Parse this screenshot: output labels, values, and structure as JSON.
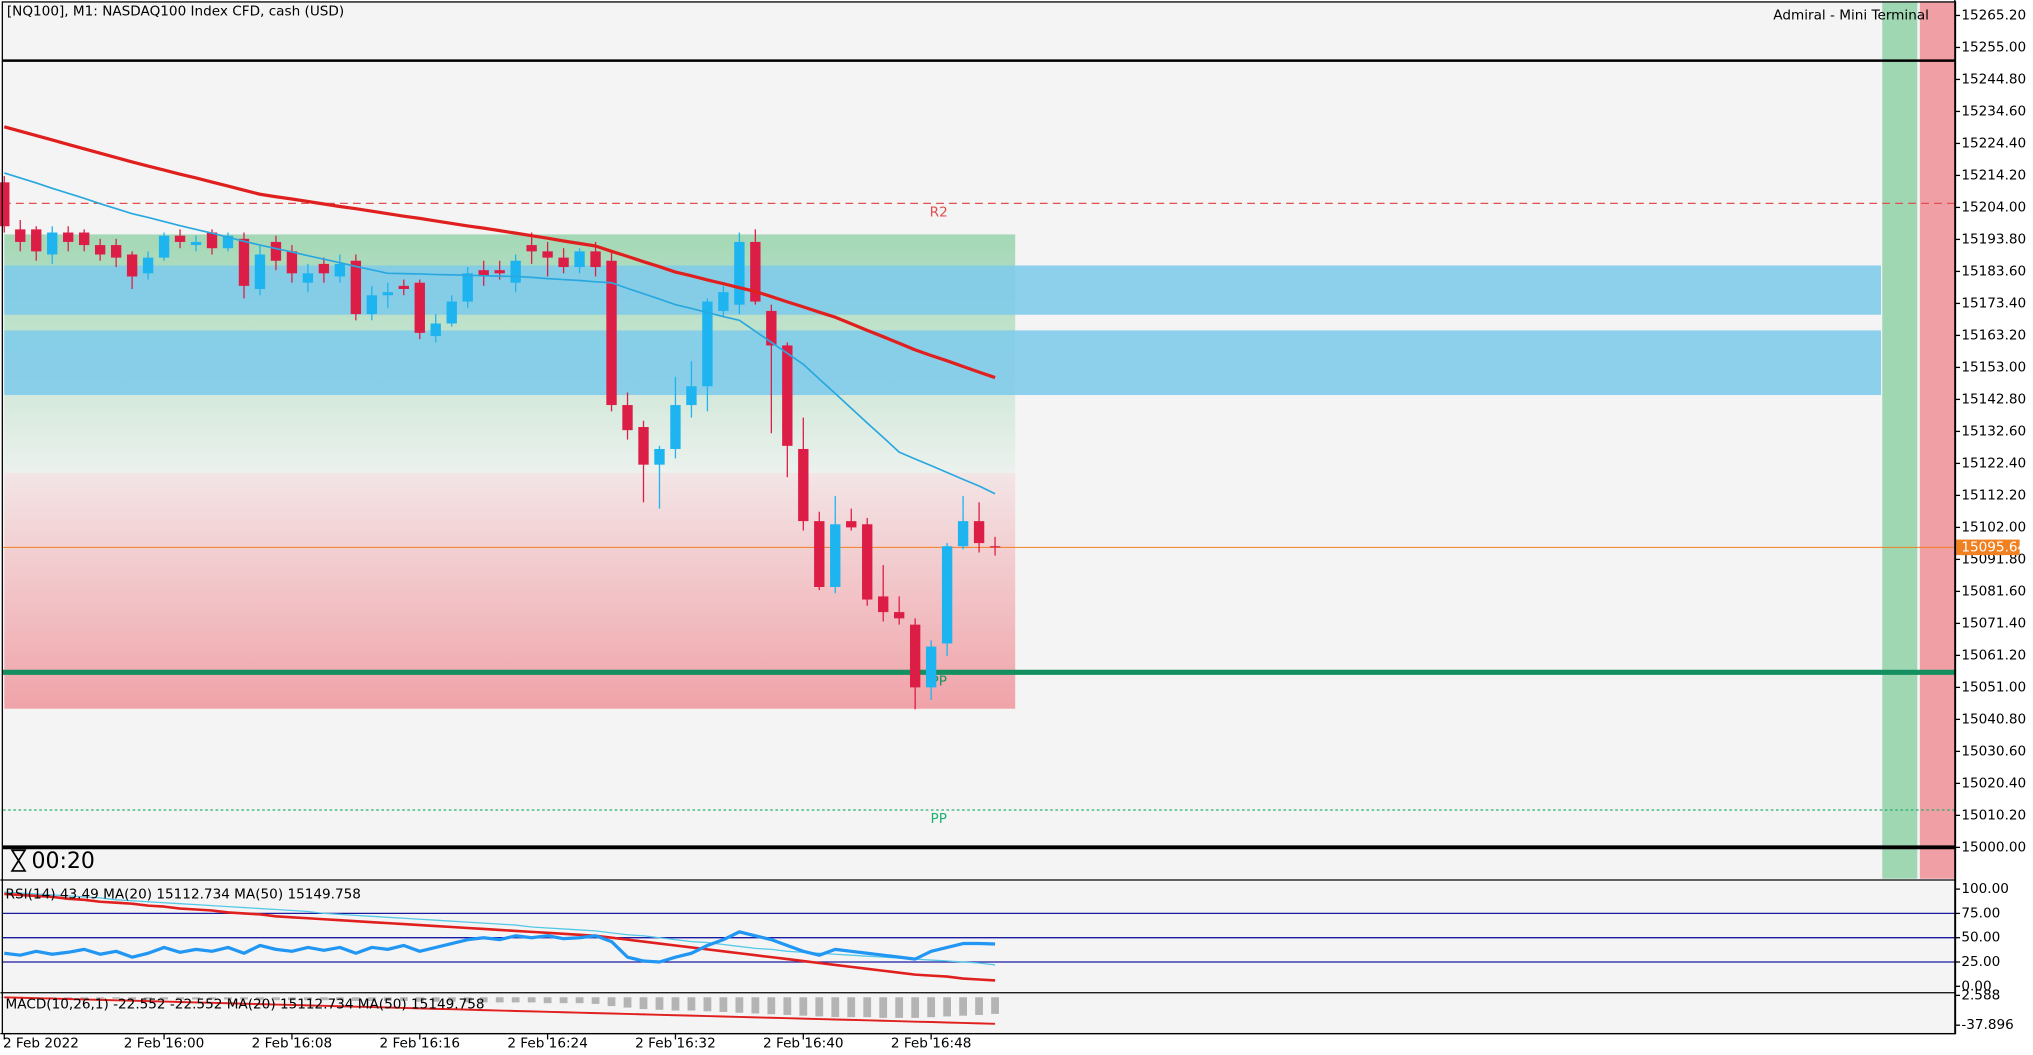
{
  "chart_data": [
    {
      "type": "candlestick",
      "title": "[NQ100], M1:  NASDAQ100 Index CFD, cash (USD)",
      "broker_label": "Admiral - Mini Terminal",
      "timer": "00:20",
      "categories": [
        "2 Feb 2022",
        null,
        null,
        null,
        null,
        null,
        null,
        null,
        null,
        null,
        "2 Feb 16:00",
        null,
        null,
        null,
        null,
        null,
        null,
        null,
        "2 Feb 16:08",
        null,
        null,
        null,
        null,
        null,
        null,
        null,
        "2 Feb 16:16",
        null,
        null,
        null,
        null,
        null,
        null,
        null,
        "2 Feb 16:24",
        null,
        null,
        null,
        null,
        null,
        null,
        null,
        "2 Feb 16:32",
        null,
        null,
        null,
        null,
        null,
        null,
        null,
        "2 Feb 16:40",
        null,
        null,
        null,
        null,
        null,
        null,
        null,
        "2 Feb 16:48",
        null,
        null,
        null,
        null
      ],
      "open": [
        15212,
        15197,
        15197,
        15189,
        15196,
        15196,
        15192,
        15192,
        15189,
        15183,
        15188,
        15195,
        15192,
        15196,
        15191,
        15194,
        15178,
        15193,
        15190,
        15180,
        15186,
        15182,
        15187,
        15170,
        15176,
        15179,
        15180,
        15163,
        15167,
        15174,
        15184,
        15184,
        15180,
        15192,
        15190,
        15188,
        15185,
        15190,
        15187,
        15141,
        15134,
        15122,
        15127,
        15141,
        15147,
        15171,
        15173,
        15193,
        15171,
        15160,
        15127,
        15104,
        15083,
        15104,
        15103,
        15080,
        15075,
        15071,
        15051,
        15065,
        15096,
        15104,
        15096
      ],
      "high": [
        15214,
        15200,
        15198,
        15198,
        15198,
        15197,
        15194,
        15194,
        15190,
        15190,
        15196,
        15197,
        15195,
        15197,
        15196,
        15196,
        15192,
        15195,
        15192,
        15186,
        15188,
        15189,
        15189,
        15179,
        15180,
        15181,
        15181,
        15170,
        15176,
        15185,
        15187,
        15187,
        15189,
        15196,
        15193,
        15191,
        15191,
        15193,
        15190,
        15145,
        15136,
        15128,
        15150,
        15155,
        15175,
        15179,
        15196,
        15197,
        15173,
        15161,
        15137,
        15107,
        15112,
        15108,
        15105,
        15090,
        15080,
        15073,
        15066,
        15097,
        15112,
        15110,
        15099
      ],
      "low": [
        15196,
        15190,
        15187,
        15186,
        15190,
        15190,
        15187,
        15185,
        15178,
        15181,
        15187,
        15191,
        15190,
        15189,
        15190,
        15175,
        15176,
        15184,
        15180,
        15177,
        15180,
        15180,
        15168,
        15168,
        15172,
        15176,
        15162,
        15161,
        15166,
        15172,
        15179,
        15181,
        15177,
        15186,
        15182,
        15183,
        15183,
        15182,
        15139,
        15130,
        15110,
        15108,
        15124,
        15137,
        15139,
        15169,
        15170,
        15173,
        15132,
        15118,
        15101,
        15082,
        15081,
        15101,
        15077,
        15072,
        15071,
        15044,
        15047,
        15061,
        15095,
        15094,
        15093
      ],
      "close": [
        15198,
        15193,
        15190,
        15196,
        15193,
        15192,
        15189,
        15188,
        15182,
        15188,
        15195,
        15193,
        15193,
        15191,
        15195,
        15179,
        15189,
        15187,
        15183,
        15183,
        15183,
        15186,
        15170,
        15176,
        15177,
        15178,
        15164,
        15167,
        15174,
        15183,
        15182,
        15183,
        15187,
        15190,
        15188,
        15185,
        15190,
        15185,
        15141,
        15133,
        15122,
        15127,
        15141,
        15147,
        15174,
        15177,
        15193,
        15174,
        15160,
        15128,
        15104,
        15083,
        15103,
        15102,
        15079,
        15075,
        15073,
        15051,
        15064,
        15096,
        15104,
        15097,
        15095.64
      ],
      "up_color": "#1eb4f0",
      "down_color": "#dc1e46",
      "lines": [
        {
          "color": "#29a8e0",
          "width": 1.3,
          "values": [
            15215,
            15213.4,
            15211.8,
            15210.1,
            15208.5,
            15206.9,
            15205.2,
            15203.6,
            15202,
            15200.8,
            15199.5,
            15198.2,
            15197,
            15195.8,
            15194.5,
            15193.2,
            15192,
            15190.9,
            15189.8,
            15188.6,
            15187.5,
            15186.4,
            15185.2,
            15184.1,
            15183,
            15182.9,
            15182.8,
            15182.6,
            15182.5,
            15182.4,
            15182.2,
            15182.1,
            15182,
            15181.7,
            15181.3,
            15181,
            15180.7,
            15180.3,
            15180,
            15178.2,
            15176.5,
            15174.8,
            15173,
            15171.8,
            15170.5,
            15169.2,
            15168,
            15164.5,
            15161,
            15157.5,
            15154,
            15149.3,
            15144.7,
            15140,
            15135.3,
            15130.7,
            15126,
            15123.8,
            15121.7,
            15119.5,
            15117.3,
            15115.2,
            15112.73
          ]
        },
        {
          "color": "#e0201e",
          "width": 2.5,
          "values": [
            15229.7,
            15228.3,
            15226.9,
            15225.5,
            15224.1,
            15222.7,
            15221.3,
            15219.9,
            15218.5,
            15217.2,
            15215.9,
            15214.6,
            15213.4,
            15212.1,
            15210.8,
            15209.5,
            15208.2,
            15207.4,
            15206.7,
            15205.9,
            15205.1,
            15204.3,
            15203.6,
            15202.8,
            15202,
            15201.2,
            15200.5,
            15199.7,
            15198.9,
            15198.1,
            15197.4,
            15196.6,
            15195.8,
            15195,
            15194.2,
            15193.3,
            15192.5,
            15191.7,
            15190,
            15188.4,
            15186.7,
            15185.1,
            15183.4,
            15182.2,
            15180.9,
            15179.7,
            15178.4,
            15177.2,
            15175.6,
            15173.9,
            15172.3,
            15170.6,
            15169,
            15166.9,
            15164.8,
            15162.8,
            15160.7,
            15158.6,
            15156.8,
            15155.1,
            15153.3,
            15151.5,
            15149.76
          ]
        }
      ],
      "zones": [
        {
          "from": 15195.4,
          "to": 15119.4,
          "color": "#8fd1a6",
          "fade": "down",
          "extended": false
        },
        {
          "from": 15119.4,
          "to": 15044.2,
          "color": "#ef8f96",
          "fade": "up",
          "extended": false
        },
        {
          "from": 15185.5,
          "to": 15169.8,
          "color": "#7ecbea",
          "fade": "none",
          "extended": true
        },
        {
          "from": 15164.8,
          "to": 15144.2,
          "color": "#7ecbea",
          "fade": "none",
          "extended": true
        }
      ],
      "levels": [
        {
          "value": 15250.8,
          "color": "#000000",
          "width": 2,
          "style": "solid"
        },
        {
          "value": 15205.3,
          "label": "R2",
          "color": "#e05050",
          "width": 1,
          "style": "dashed"
        },
        {
          "value": 15055.8,
          "label": "PP",
          "color": "#149060",
          "width": 4,
          "style": "solid"
        },
        {
          "value": 15011.9,
          "label": "PP",
          "color": "#20b070",
          "width": 1,
          "style": "dotted"
        },
        {
          "value": 15000,
          "color": "#000000",
          "width": 3,
          "style": "solid"
        }
      ],
      "current_price": 15095.64,
      "current_color": "#f08020",
      "ylim": [
        14990,
        15269.3
      ],
      "yticks": [
        {
          "value": 15265.2,
          "label": "15265.20"
        },
        {
          "value": 15255,
          "label": "15255.00"
        },
        {
          "value": 15244.8,
          "label": "15244.80"
        },
        {
          "value": 15234.6,
          "label": "15234.60"
        },
        {
          "value": 15224.4,
          "label": "15224.40"
        },
        {
          "value": 15214.2,
          "label": "15214.20"
        },
        {
          "value": 15204,
          "label": "15204.00"
        },
        {
          "value": 15193.8,
          "label": "15193.80"
        },
        {
          "value": 15183.6,
          "label": "15183.60"
        },
        {
          "value": 15173.4,
          "label": "15173.40"
        },
        {
          "value": 15163.2,
          "label": "15163.20"
        },
        {
          "value": 15153,
          "label": "15153.00"
        },
        {
          "value": 15142.8,
          "label": "15142.80"
        },
        {
          "value": 15132.6,
          "label": "15132.60"
        },
        {
          "value": 15122.4,
          "label": "15122.40"
        },
        {
          "value": 15112.2,
          "label": "15112.20"
        },
        {
          "value": 15102,
          "label": "15102.00"
        },
        {
          "value": 15091.8,
          "label": "15091.80"
        },
        {
          "value": 15081.6,
          "label": "15081.60"
        },
        {
          "value": 15071.4,
          "label": "15071.40"
        },
        {
          "value": 15061.2,
          "label": "15061.20"
        },
        {
          "value": 15051,
          "label": "15051.00"
        },
        {
          "value": 15040.8,
          "label": "15040.80"
        },
        {
          "value": 15030.6,
          "label": "15030.60"
        },
        {
          "value": 15020.4,
          "label": "15020.40"
        },
        {
          "value": 15010.2,
          "label": "15010.20"
        },
        {
          "value": 15000,
          "label": "15000.00"
        }
      ]
    },
    {
      "type": "line",
      "title": "RSI(14) 43.49 MA(20) 15112.734 MA(50) 15149.758",
      "ylim": [
        0,
        100
      ],
      "yticks": [
        {
          "value": 100,
          "label": "100.00"
        },
        {
          "value": 75,
          "label": "75.00"
        },
        {
          "value": 50,
          "label": "50.00"
        },
        {
          "value": 25,
          "label": "25.00"
        },
        {
          "value": 0,
          "label": "0.00"
        }
      ],
      "levels": [
        75,
        50,
        25
      ],
      "level_color": "#1a1aa0",
      "series": [
        {
          "color": "#56c8e8",
          "width": 1,
          "values": [
            97,
            96,
            95,
            94,
            93,
            92,
            91,
            89,
            88,
            87,
            86,
            85,
            84,
            83,
            82,
            81,
            80,
            79,
            78,
            77,
            75,
            74,
            73,
            72,
            71,
            70,
            69,
            68,
            67,
            66,
            65,
            64,
            63,
            61,
            60,
            59,
            58,
            57,
            55,
            53,
            52,
            50,
            48,
            46,
            45,
            43,
            41,
            39,
            38,
            36,
            35,
            34,
            33,
            32,
            31,
            30,
            29,
            28,
            27,
            26,
            25,
            24,
            22
          ]
        },
        {
          "color": "#e0201e",
          "width": 2,
          "values": [
            95,
            94,
            93,
            92,
            90,
            89,
            87,
            86,
            85,
            83,
            82,
            80,
            79,
            78,
            76,
            75,
            74,
            72,
            71,
            70,
            69,
            68,
            67,
            66,
            65,
            64,
            63,
            62,
            61,
            60,
            59,
            58,
            57,
            56,
            55,
            54,
            53,
            52,
            50,
            48,
            46,
            44,
            42,
            40,
            38,
            36,
            34,
            32,
            30,
            28,
            26,
            24,
            22,
            20,
            18,
            16,
            14,
            12,
            11,
            10,
            8,
            7,
            6
          ]
        },
        {
          "color": "#2196f3",
          "width": 2.5,
          "values": [
            34,
            32,
            36,
            33,
            35,
            38,
            33,
            36,
            30,
            34,
            40,
            35,
            38,
            36,
            40,
            34,
            42,
            38,
            36,
            40,
            37,
            40,
            34,
            40,
            38,
            42,
            36,
            40,
            44,
            48,
            50,
            48,
            52,
            50,
            52,
            49,
            50,
            52,
            46,
            30,
            26,
            25,
            30,
            34,
            42,
            48,
            56,
            52,
            48,
            42,
            36,
            32,
            38,
            36,
            34,
            32,
            30,
            28,
            36,
            40,
            44,
            44,
            43.49
          ]
        }
      ]
    },
    {
      "type": "bar",
      "title": "MACD(10,26,1) -22.552 -22.552 MA(20) 15112.734 MA(50) 15149.758",
      "ylim": [
        -37.896,
        2.588
      ],
      "yticks": [
        2.588,
        -37.896
      ],
      "series": [
        {
          "type": "bar",
          "color": "#b4b4b4",
          "values": [
            -1,
            -1,
            -1,
            -2,
            -2,
            -2,
            -2,
            -2,
            -3,
            -3,
            -3,
            -3,
            -3,
            -3,
            -3,
            -3,
            -4,
            -4,
            -4,
            -4,
            -4,
            -4,
            -5,
            -5,
            -5,
            -5,
            -6,
            -6,
            -6,
            -7,
            -7,
            -7,
            -7,
            -7,
            -8,
            -8,
            -8,
            -9,
            -12,
            -14,
            -16,
            -17,
            -18,
            -18,
            -19,
            -20,
            -21,
            -22,
            -23,
            -24,
            -25,
            -26,
            -27,
            -27,
            -27,
            -28,
            -28,
            -28,
            -27,
            -26,
            -25,
            -24,
            -22.552
          ]
        },
        {
          "type": "line",
          "color": "#e0201e",
          "values": [
            0,
            -0.6,
            -1.2,
            -1.7,
            -2.3,
            -2.9,
            -3.5,
            -4.1,
            -4.6,
            -5.2,
            -5.8,
            -6.4,
            -7,
            -7.5,
            -8.1,
            -8.7,
            -9.3,
            -9.9,
            -10.4,
            -11,
            -11.6,
            -12.2,
            -12.8,
            -13.3,
            -13.9,
            -14.5,
            -15.1,
            -15.7,
            -16.2,
            -16.8,
            -17.4,
            -18,
            -18.6,
            -19.1,
            -19.7,
            -20.3,
            -20.9,
            -21.5,
            -22,
            -22.6,
            -23.2,
            -23.8,
            -24.4,
            -24.9,
            -25.5,
            -26.1,
            -26.7,
            -27.3,
            -27.8,
            -28.4,
            -29,
            -29.6,
            -30.2,
            -30.7,
            -31.3,
            -31.9,
            -32.5,
            -33.1,
            -33.6,
            -34.2,
            -34.8,
            -35.4,
            -36
          ]
        }
      ]
    }
  ]
}
